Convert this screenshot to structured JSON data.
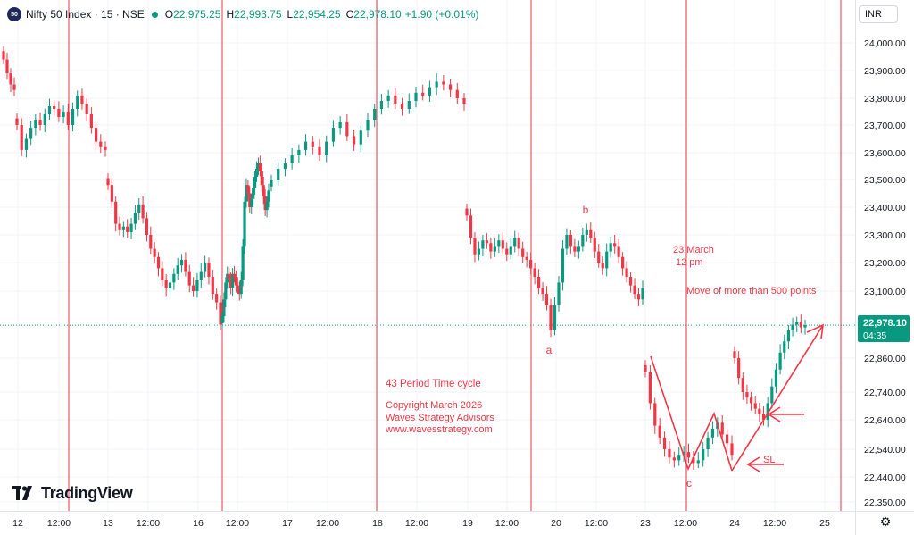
{
  "header": {
    "symbol_badge": "50",
    "title": "Nifty 50 Index · 15 · NSE",
    "ohlc": [
      {
        "k": "O",
        "v": "22,975.25"
      },
      {
        "k": "H",
        "v": "22,993.75"
      },
      {
        "k": "L",
        "v": "22,954.25"
      },
      {
        "k": "C",
        "v": "22,978.10"
      }
    ],
    "change": "+1.90 (+0.01%)"
  },
  "currency_button": "INR",
  "price_tag": {
    "price": "22,978.10",
    "countdown": "04:35"
  },
  "brand": "TradingView",
  "settings_icon": "gear-icon",
  "colors": {
    "up": "#089981",
    "down": "#f23645",
    "cycle_line": "#f23645",
    "annotation": "#f23645",
    "axis_text": "#131722"
  },
  "chart_data": {
    "type": "candlestick",
    "instrument": "Nifty 50 Index",
    "interval": "15",
    "exchange": "NSE",
    "y_axis": {
      "ticks": [
        22350,
        22440,
        22540,
        22640,
        22740,
        22860,
        23100,
        23200,
        23300,
        23400,
        23500,
        23600,
        23700,
        23800,
        23900,
        24000
      ],
      "tick_labels": [
        "22,350.00",
        "22,440.00",
        "22,540.00",
        "22,640.00",
        "22,740.00",
        "22,860.00",
        "23,100.00",
        "23,200.00",
        "23,300.00",
        "23,400.00",
        "23,500.00",
        "23,600.00",
        "23,700.00",
        "23,800.00",
        "23,900.00",
        "24,000.00"
      ]
    },
    "x_axis": {
      "tick_labels": [
        "12",
        "12:00",
        "13",
        "12:00",
        "16",
        "12:00",
        "17",
        "12:00",
        "18",
        "12:00",
        "19",
        "12:00",
        "20",
        "12:00",
        "23",
        "12:00",
        "24",
        "12:00",
        "25"
      ]
    },
    "last_price": 22978.1,
    "series": [
      {
        "day": "12",
        "closes": [
          23940,
          23890,
          23850,
          23830
        ]
      },
      {
        "day": "12-b",
        "closes": [
          23700,
          23610,
          23650,
          23690,
          23720,
          23700,
          23740,
          23770,
          23760,
          23730,
          23750,
          23700,
          23760,
          23810,
          23780,
          23740,
          23690,
          23640,
          23620,
          23610
        ]
      },
      {
        "day": "13",
        "closes": [
          23480,
          23420,
          23340,
          23320,
          23330,
          23310,
          23340,
          23380,
          23410,
          23360,
          23300,
          23250,
          23220,
          23180,
          23140,
          23110,
          23130,
          23160,
          23190,
          23210,
          23170,
          23120,
          23100,
          23140,
          23170,
          23200,
          23150,
          23090,
          23060,
          22980
        ]
      },
      {
        "day": "16",
        "closes": [
          23010,
          23070,
          23130,
          23160,
          23140,
          23110,
          23160,
          23150,
          23120,
          23110,
          23090,
          23140,
          23260,
          23420,
          23480,
          23450,
          23400,
          23430,
          23470,
          23510,
          23540,
          23560,
          23530,
          23480,
          23440,
          23390,
          23420,
          23460
        ]
      },
      {
        "day": "17",
        "closes": [
          23500,
          23540,
          23560,
          23590,
          23610,
          23640,
          23620,
          23590,
          23640,
          23690,
          23710,
          23660,
          23630,
          23680,
          23720,
          23760,
          23790,
          23810,
          23780,
          23760,
          23790,
          23820,
          23810,
          23840,
          23860,
          23850,
          23830,
          23800,
          23780
        ]
      },
      {
        "day": "19",
        "closes": [
          23370,
          23290,
          23230,
          23250,
          23280,
          23270,
          23240,
          23260,
          23280,
          23250,
          23230,
          23260,
          23290,
          23250,
          23220,
          23210,
          23180,
          23150,
          23110,
          23090,
          23050,
          22960,
          23050,
          23130,
          23250,
          23300,
          23260,
          23240,
          23260,
          23300,
          23320,
          23290,
          23240,
          23200,
          23180,
          23240,
          23270,
          23260,
          23220,
          23180,
          23150,
          23120,
          23090,
          23070,
          23110
        ]
      },
      {
        "day": "20-gap",
        "closes": [
          22810,
          22700,
          22620,
          22580,
          22540,
          22510,
          22500,
          22520,
          22530,
          22510,
          22490,
          22500,
          22540,
          22580,
          22610,
          22630,
          22590,
          22560,
          22520
        ]
      },
      {
        "day": "23-24",
        "closes": [
          22860,
          22790,
          22740,
          22720,
          22700,
          22680,
          22660,
          22640,
          22700,
          22760,
          22820,
          22880,
          22920,
          22960,
          22980,
          22990,
          22970,
          22978
        ]
      }
    ]
  },
  "annotations": {
    "wave_a": "a",
    "wave_b": "b",
    "wave_c": "c",
    "cycle_text": "43 Period Time cycle",
    "copyright_1": "Copyright March 2026",
    "copyright_2": "Waves Strategy Advisors",
    "copyright_3": "www.wavesstrategy.com",
    "date_note_1": "23 March",
    "date_note_2": "12 pm",
    "move_note": "Move of more than 500 points",
    "sl": "SL"
  }
}
